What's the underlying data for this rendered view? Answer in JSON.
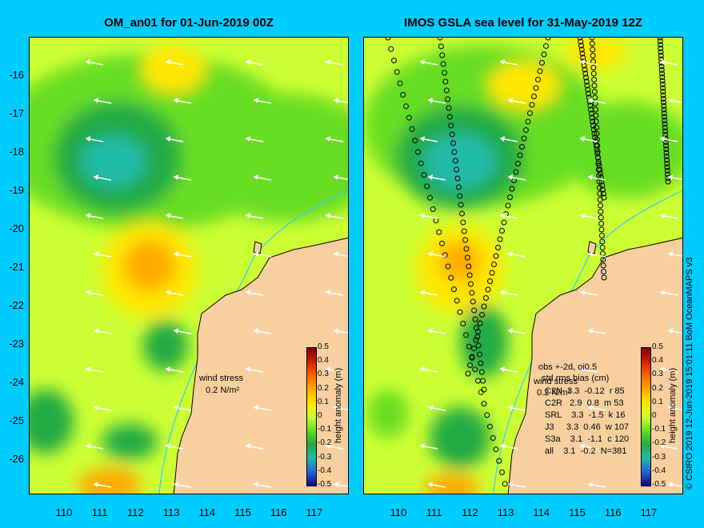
{
  "titles": {
    "left": "OM_an01 for 01-Jun-2019 00Z",
    "right": "IMOS GSLA sea level  for 31-May-2019 12Z"
  },
  "lat_labels": [
    "-16",
    "-17",
    "-18",
    "-19",
    "-20",
    "-21",
    "-22",
    "-23",
    "-24",
    "-25",
    "-26"
  ],
  "lon_labels": [
    "110",
    "111",
    "112",
    "113",
    "114",
    "115",
    "116",
    "117"
  ],
  "colorbar": {
    "label": "height anomaly (m)",
    "ticks": [
      "0.5",
      "0.4",
      "0.3",
      "0.2",
      "0.1",
      "0",
      "-0.1",
      "-0.2",
      "-0.3",
      "-0.4",
      "-0.5"
    ],
    "colors": [
      "#7f0000",
      "#cc2200",
      "#ff6600",
      "#ffaa00",
      "#ffe600",
      "#ccff33",
      "#66dd22",
      "#22aa44",
      "#22bbaa",
      "#2266dd",
      "#0a0a80"
    ]
  },
  "wind_stress": {
    "label": "wind stress",
    "value": "0.2 N/m²"
  },
  "stats": {
    "header1": "obs +-2d, oi0.5",
    "header2": "std rms bias (cm)",
    "rows": [
      "C2N  3.3  -0.12  r 85",
      "C2R   2.9  0.8  m 53",
      "SRL    3.3  -1.5  k 16",
      "J3     3.3  0.46  w 107",
      "S3a    3.1  -1.1  c 120",
      "all    3.1  -0.2  N=381"
    ]
  },
  "credit": "© CSIRO 2019  12-Jun-2019 15:01:11  BoM OceanMAPS v3",
  "colors": {
    "land": "#f8d0a0",
    "background": "#00ccff",
    "coast": "#000000",
    "shelf": "#33ccff"
  }
}
